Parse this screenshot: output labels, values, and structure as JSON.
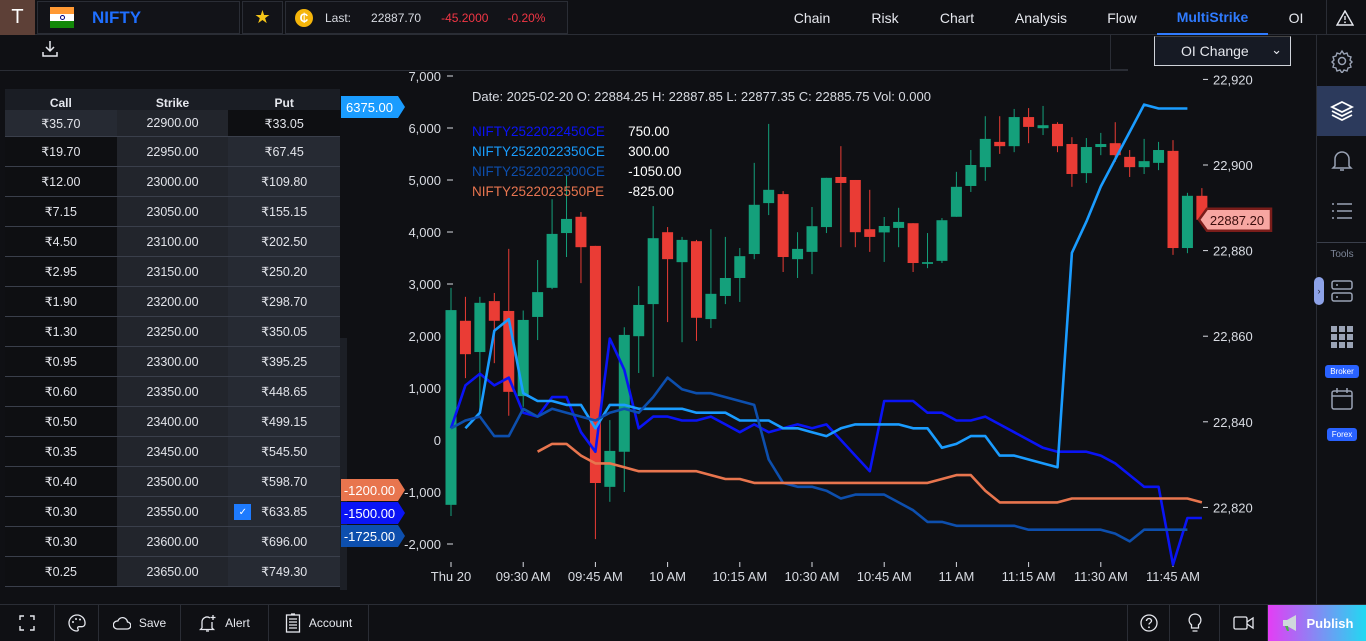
{
  "header": {
    "avatar_letter": "T",
    "symbol": "NIFTY",
    "ticker": {
      "last_label": "Last:",
      "last": "22887.70",
      "change": "-45.2000",
      "change_pct": "-0.20%"
    },
    "tabs": [
      {
        "label": "Chain"
      },
      {
        "label": "Risk"
      },
      {
        "label": "Chart"
      },
      {
        "label": "Analysis"
      },
      {
        "label": "Flow"
      },
      {
        "label": "MultiStrike",
        "active": true
      },
      {
        "label": "OI"
      }
    ],
    "oi_select": "OI Change"
  },
  "sidebar": {
    "tools_label": "Tools",
    "broker_badge": "Broker",
    "forex_badge": "Forex"
  },
  "strike_table": {
    "headers": [
      "Call",
      "Strike",
      "Put"
    ],
    "rows": [
      {
        "call": "₹35.70",
        "strike": "22900.00",
        "put": "₹33.05"
      },
      {
        "call": "₹19.70",
        "strike": "22950.00",
        "put": "₹67.45"
      },
      {
        "call": "₹12.00",
        "strike": "23000.00",
        "put": "₹109.80"
      },
      {
        "call": "₹7.15",
        "strike": "23050.00",
        "put": "₹155.15"
      },
      {
        "call": "₹4.50",
        "strike": "23100.00",
        "put": "₹202.50"
      },
      {
        "call": "₹2.95",
        "strike": "23150.00",
        "put": "₹250.20"
      },
      {
        "call": "₹1.90",
        "strike": "23200.00",
        "put": "₹298.70"
      },
      {
        "call": "₹1.30",
        "strike": "23250.00",
        "put": "₹350.05"
      },
      {
        "call": "₹0.95",
        "strike": "23300.00",
        "put": "₹395.25"
      },
      {
        "call": "₹0.60",
        "strike": "23350.00",
        "put": "₹448.65"
      },
      {
        "call": "₹0.50",
        "strike": "23400.00",
        "put": "₹499.15"
      },
      {
        "call": "₹0.35",
        "strike": "23450.00",
        "put": "₹545.50"
      },
      {
        "call": "₹0.40",
        "strike": "23500.00",
        "put": "₹598.70"
      },
      {
        "call": "₹0.30",
        "strike": "23550.00",
        "put": "₹633.85",
        "put_checked": true
      },
      {
        "call": "₹0.30",
        "strike": "23600.00",
        "put": "₹696.00"
      },
      {
        "call": "₹0.25",
        "strike": "23650.00",
        "put": "₹749.30"
      }
    ]
  },
  "chart_data": {
    "type": "candlestick+line",
    "ohlc_readout": "Date: 2025-02-20 O: 22884.25 H: 22887.85 L: 22877.35 C: 22885.75 Vol: 0.000",
    "x_ticks": [
      "Thu 20",
      "09:30 AM",
      "09:45 AM",
      "10 AM",
      "10:15 AM",
      "10:30 AM",
      "10:45 AM",
      "11 AM",
      "11:15 AM",
      "11:30 AM",
      "11:45 AM"
    ],
    "x_tick_times": [
      "09:15",
      "09:30",
      "09:45",
      "10:00",
      "10:15",
      "10:30",
      "10:45",
      "11:00",
      "11:15",
      "11:30",
      "11:45"
    ],
    "left_axis": {
      "ticks": [
        "7,000",
        "6,000",
        "5,000",
        "4,000",
        "3,000",
        "2,000",
        "1,000",
        "0",
        "-1,000",
        "-2,000"
      ],
      "tick_values": [
        7000,
        6000,
        5000,
        4000,
        3000,
        2000,
        1000,
        0,
        -1000,
        -2000
      ]
    },
    "right_axis": {
      "ticks": [
        "22,920",
        "22,900",
        "22,880",
        "22,860",
        "22,840",
        "22,820"
      ],
      "tick_values": [
        22920,
        22900,
        22880,
        22860,
        22840,
        22820
      ]
    },
    "up_color": "#14a07b",
    "down_color": "#ea3c35",
    "times": [
      "09:15",
      "09:18",
      "09:21",
      "09:24",
      "09:27",
      "09:30",
      "09:33",
      "09:36",
      "09:39",
      "09:42",
      "09:45",
      "09:48",
      "09:51",
      "09:54",
      "09:57",
      "10:00",
      "10:03",
      "10:06",
      "10:09",
      "10:12",
      "10:15",
      "10:18",
      "10:21",
      "10:24",
      "10:27",
      "10:30",
      "10:33",
      "10:36",
      "10:39",
      "10:42",
      "10:45",
      "10:48",
      "10:51",
      "10:54",
      "10:57",
      "11:00",
      "11:03",
      "11:06",
      "11:09",
      "11:12",
      "11:15",
      "11:18",
      "11:21",
      "11:24",
      "11:27",
      "11:30",
      "11:33",
      "11:36",
      "11:39",
      "11:42",
      "11:45",
      "11:48",
      "11:51"
    ],
    "candles": [
      [
        22820.6,
        22871.3,
        22818.0,
        22866.1
      ],
      [
        22863.6,
        22869.2,
        22850.2,
        22855.8
      ],
      [
        22856.3,
        22869.2,
        22842.8,
        22867.8
      ],
      [
        22868.2,
        22870.1,
        22853.7,
        22863.6
      ],
      [
        22865.9,
        22880.4,
        22841.4,
        22847.0
      ],
      [
        22846.0,
        22866.0,
        22843.5,
        22863.8
      ],
      [
        22864.5,
        22877.8,
        22859.1,
        22870.3
      ],
      [
        22871.3,
        22892.0,
        22871.0,
        22883.9
      ],
      [
        22884.1,
        22897.7,
        22878.5,
        22887.4
      ],
      [
        22887.9,
        22889.0,
        22872.4,
        22880.8
      ],
      [
        22881.1,
        22881.1,
        22812.6,
        22825.7
      ],
      [
        22824.8,
        22840.4,
        22821.3,
        22833.2
      ],
      [
        22833.0,
        22862.1,
        22823.6,
        22860.3
      ],
      [
        22860.0,
        22871.7,
        22851.4,
        22867.3
      ],
      [
        22867.5,
        22890.4,
        22850.5,
        22882.9
      ],
      [
        22884.3,
        22885.5,
        22863.3,
        22878.0
      ],
      [
        22877.3,
        22883.2,
        22858.6,
        22882.5
      ],
      [
        22882.2,
        22882.5,
        22858.9,
        22864.3
      ],
      [
        22864.0,
        22885.0,
        22861.9,
        22869.9
      ],
      [
        22869.4,
        22883.2,
        22867.5,
        22873.6
      ],
      [
        22873.6,
        22880.6,
        22868.0,
        22878.7
      ],
      [
        22879.2,
        22900.5,
        22878.0,
        22890.7
      ],
      [
        22891.1,
        22909.6,
        22888.3,
        22894.2
      ],
      [
        22893.2,
        22893.9,
        22875.0,
        22878.5
      ],
      [
        22878.0,
        22884.3,
        22873.6,
        22880.4
      ],
      [
        22879.7,
        22890.2,
        22874.5,
        22885.7
      ],
      [
        22885.5,
        22897.0,
        22884.1,
        22897.0
      ],
      [
        22897.2,
        22904.4,
        22880.8,
        22895.8
      ],
      [
        22896.5,
        22896.5,
        22880.8,
        22884.3
      ],
      [
        22885.0,
        22894.2,
        22879.7,
        22883.2
      ],
      [
        22884.25,
        22887.85,
        22877.35,
        22885.75
      ],
      [
        22885.3,
        22890.0,
        22880.8,
        22886.7
      ],
      [
        22886.4,
        22886.4,
        22875.0,
        22877.1
      ],
      [
        22876.9,
        22884.1,
        22875.9,
        22877.3
      ],
      [
        22877.6,
        22887.6,
        22877.1,
        22887.1
      ],
      [
        22887.9,
        22898.4,
        22887.9,
        22894.9
      ],
      [
        22895.1,
        22903.5,
        22893.7,
        22900.0
      ],
      [
        22899.5,
        22911.4,
        22896.3,
        22906.1
      ],
      [
        22905.4,
        22911.4,
        22902.6,
        22904.4
      ],
      [
        22904.4,
        22913.1,
        22903.0,
        22911.2
      ],
      [
        22911.2,
        22913.3,
        22905.1,
        22908.9
      ],
      [
        22908.6,
        22913.8,
        22907.0,
        22909.3
      ],
      [
        22909.6,
        22910.0,
        22903.0,
        22904.4
      ],
      [
        22904.9,
        22906.5,
        22894.9,
        22897.9
      ],
      [
        22898.1,
        22906.3,
        22895.8,
        22904.2
      ],
      [
        22904.2,
        22907.5,
        22902.3,
        22904.9
      ],
      [
        22905.1,
        22910.0,
        22900.7,
        22902.3
      ],
      [
        22901.9,
        22903.5,
        22897.2,
        22899.5
      ],
      [
        22899.5,
        22906.1,
        22897.9,
        22900.9
      ],
      [
        22900.5,
        22905.4,
        22898.8,
        22903.5
      ],
      [
        22903.3,
        22905.8,
        22879.0,
        22880.6
      ],
      [
        22880.6,
        22893.5,
        22879.4,
        22892.8
      ],
      [
        22892.8,
        22894.6,
        22887.0,
        22887.2
      ]
    ],
    "price_tag": "22887.20",
    "series": [
      {
        "name": "NIFTY2522022450CE",
        "legend_value": "750.00",
        "color": "#0a14f5",
        "values": [
          225,
          1050,
          1275,
          1050,
          1200,
          525,
          450,
          825,
          825,
          150,
          -225,
          1950,
          1350,
          225,
          450,
          450,
          375,
          375,
          450,
          300,
          150,
          300,
          150,
          225,
          300,
          225,
          300,
          0,
          -300,
          -600,
          750,
          750,
          750,
          525,
          525,
          375,
          375,
          450,
          300,
          150,
          0,
          -150,
          -225,
          -225,
          -225,
          -300,
          -450,
          -675,
          -900,
          -900,
          -2400,
          -1500,
          -1500
        ],
        "end_tag": "-1500.00"
      },
      {
        "name": "NIFTY2522022350CE",
        "legend_value": "300.00",
        "color": "#1a9cff",
        "values": [
          null,
          225,
          525,
          2100,
          2325,
          900,
          750,
          750,
          675,
          675,
          225,
          675,
          675,
          600,
          600,
          600,
          600,
          525,
          525,
          525,
          375,
          375,
          375,
          225,
          225,
          150,
          75,
          225,
          300,
          300,
          300,
          300,
          225,
          225,
          -150,
          -75,
          75,
          75,
          -300,
          -300,
          -375,
          -450,
          -525,
          3600,
          4200,
          4875,
          5400,
          5925,
          6450,
          6375,
          6375,
          6375,
          null
        ],
        "end_tag": "6375.00"
      },
      {
        "name": "NIFTY2522022300CE",
        "legend_value": "-1050.00",
        "color": "#0d4fae",
        "values": [
          225,
          375,
          450,
          75,
          75,
          600,
          450,
          600,
          525,
          450,
          375,
          525,
          600,
          525,
          825,
          1200,
          975,
          900,
          900,
          825,
          750,
          675,
          -375,
          -825,
          -900,
          -900,
          -975,
          -1125,
          -1050,
          -1050,
          -1050,
          -1200,
          -1350,
          -1575,
          -1575,
          -1650,
          -1650,
          -1650,
          -1650,
          -1650,
          -1725,
          -1725,
          -1725,
          -1725,
          -1725,
          -1725,
          -1800,
          -1950,
          -1725,
          -1725,
          -1725,
          -1725,
          null
        ],
        "end_tag": "-1725.00"
      },
      {
        "name": "NIFTY2522023550PE",
        "legend_value": "-825.00",
        "color": "#e8754e",
        "values": [
          null,
          null,
          null,
          null,
          null,
          null,
          -225,
          -75,
          -75,
          -300,
          -450,
          -450,
          -525,
          -600,
          -600,
          -600,
          -600,
          -600,
          -675,
          -750,
          -750,
          -825,
          -825,
          -825,
          -825,
          -825,
          -825,
          -825,
          -825,
          -825,
          -825,
          -825,
          -825,
          -825,
          -750,
          -675,
          -675,
          -975,
          -1200,
          -1200,
          -1200,
          -1200,
          -1200,
          -1125,
          -1125,
          -1125,
          -1125,
          -1125,
          -1125,
          -1125,
          -1125,
          -1125,
          -1200
        ],
        "end_tag": "-1200.00"
      }
    ]
  },
  "footer": {
    "save": "Save",
    "alert": "Alert",
    "account": "Account",
    "publish": "Publish"
  }
}
